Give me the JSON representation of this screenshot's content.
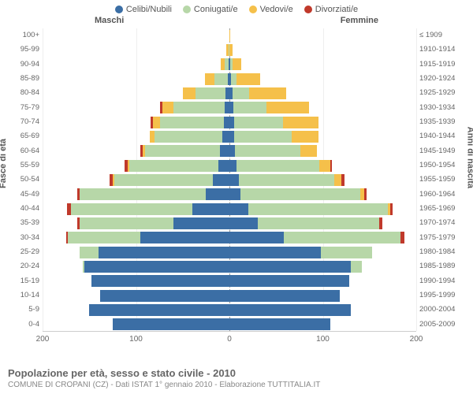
{
  "legend": [
    {
      "label": "Celibi/Nubili",
      "color": "#3b6ea5"
    },
    {
      "label": "Coniugati/e",
      "color": "#b7d7a8"
    },
    {
      "label": "Vedovi/e",
      "color": "#f5c04a"
    },
    {
      "label": "Divorziati/e",
      "color": "#c0392b"
    }
  ],
  "headers": {
    "male": "Maschi",
    "female": "Femmine"
  },
  "axis_labels": {
    "left": "Fasce di età",
    "right": "Anni di nascita"
  },
  "age_groups": [
    "0-4",
    "5-9",
    "10-14",
    "15-19",
    "20-24",
    "25-29",
    "30-34",
    "35-39",
    "40-44",
    "45-49",
    "50-54",
    "55-59",
    "60-64",
    "65-69",
    "70-74",
    "75-79",
    "80-84",
    "85-89",
    "90-94",
    "95-99",
    "100+"
  ],
  "birth_years": [
    "2005-2009",
    "2000-2004",
    "1995-1999",
    "1990-1994",
    "1985-1989",
    "1980-1984",
    "1975-1979",
    "1970-1974",
    "1965-1969",
    "1960-1964",
    "1955-1959",
    "1950-1954",
    "1945-1949",
    "1940-1944",
    "1935-1939",
    "1930-1934",
    "1925-1929",
    "1920-1924",
    "1915-1919",
    "1910-1914",
    "≤ 1909"
  ],
  "x_ticks": [
    -200,
    -100,
    0,
    100,
    200
  ],
  "x_tick_labels": [
    "200",
    "100",
    "0",
    "100",
    "200"
  ],
  "x_max": 200,
  "data": {
    "male": [
      {
        "c": 125,
        "m": 0,
        "w": 0,
        "d": 0
      },
      {
        "c": 150,
        "m": 0,
        "w": 0,
        "d": 0
      },
      {
        "c": 138,
        "m": 0,
        "w": 0,
        "d": 0
      },
      {
        "c": 148,
        "m": 0,
        "w": 0,
        "d": 0
      },
      {
        "c": 155,
        "m": 2,
        "w": 0,
        "d": 0
      },
      {
        "c": 140,
        "m": 20,
        "w": 0,
        "d": 0
      },
      {
        "c": 95,
        "m": 78,
        "w": 0,
        "d": 2
      },
      {
        "c": 60,
        "m": 100,
        "w": 0,
        "d": 3
      },
      {
        "c": 40,
        "m": 130,
        "w": 0,
        "d": 4
      },
      {
        "c": 25,
        "m": 135,
        "w": 0,
        "d": 3
      },
      {
        "c": 18,
        "m": 105,
        "w": 2,
        "d": 3
      },
      {
        "c": 12,
        "m": 95,
        "w": 2,
        "d": 3
      },
      {
        "c": 10,
        "m": 80,
        "w": 3,
        "d": 2
      },
      {
        "c": 8,
        "m": 72,
        "w": 5,
        "d": 0
      },
      {
        "c": 6,
        "m": 68,
        "w": 8,
        "d": 2
      },
      {
        "c": 5,
        "m": 55,
        "w": 12,
        "d": 2
      },
      {
        "c": 4,
        "m": 32,
        "w": 14,
        "d": 0
      },
      {
        "c": 2,
        "m": 14,
        "w": 10,
        "d": 0
      },
      {
        "c": 1,
        "m": 4,
        "w": 4,
        "d": 0
      },
      {
        "c": 0,
        "m": 1,
        "w": 2,
        "d": 0
      },
      {
        "c": 0,
        "m": 0,
        "w": 0,
        "d": 0
      }
    ],
    "female": [
      {
        "c": 108,
        "m": 0,
        "w": 0,
        "d": 0
      },
      {
        "c": 130,
        "m": 0,
        "w": 0,
        "d": 0
      },
      {
        "c": 118,
        "m": 0,
        "w": 0,
        "d": 0
      },
      {
        "c": 128,
        "m": 0,
        "w": 0,
        "d": 0
      },
      {
        "c": 130,
        "m": 12,
        "w": 0,
        "d": 0
      },
      {
        "c": 98,
        "m": 55,
        "w": 0,
        "d": 0
      },
      {
        "c": 58,
        "m": 125,
        "w": 0,
        "d": 4
      },
      {
        "c": 30,
        "m": 130,
        "w": 0,
        "d": 4
      },
      {
        "c": 20,
        "m": 150,
        "w": 2,
        "d": 3
      },
      {
        "c": 12,
        "m": 128,
        "w": 4,
        "d": 3
      },
      {
        "c": 10,
        "m": 102,
        "w": 8,
        "d": 3
      },
      {
        "c": 8,
        "m": 88,
        "w": 12,
        "d": 2
      },
      {
        "c": 6,
        "m": 70,
        "w": 18,
        "d": 0
      },
      {
        "c": 5,
        "m": 62,
        "w": 28,
        "d": 0
      },
      {
        "c": 5,
        "m": 52,
        "w": 38,
        "d": 0
      },
      {
        "c": 4,
        "m": 36,
        "w": 45,
        "d": 0
      },
      {
        "c": 3,
        "m": 18,
        "w": 40,
        "d": 0
      },
      {
        "c": 2,
        "m": 6,
        "w": 25,
        "d": 0
      },
      {
        "c": 1,
        "m": 2,
        "w": 10,
        "d": 0
      },
      {
        "c": 0,
        "m": 0,
        "w": 3,
        "d": 0
      },
      {
        "c": 0,
        "m": 0,
        "w": 1,
        "d": 0
      }
    ]
  },
  "colors": {
    "celibi": "#3b6ea5",
    "coniugati": "#b7d7a8",
    "vedovi": "#f5c04a",
    "divorziati": "#c0392b",
    "grid": "#eeeeee",
    "axis": "#cccccc",
    "bg": "#ffffff"
  },
  "footer": {
    "title": "Popolazione per età, sesso e stato civile - 2010",
    "subtitle": "COMUNE DI CROPANI (CZ) - Dati ISTAT 1° gennaio 2010 - Elaborazione TUTTITALIA.IT"
  }
}
